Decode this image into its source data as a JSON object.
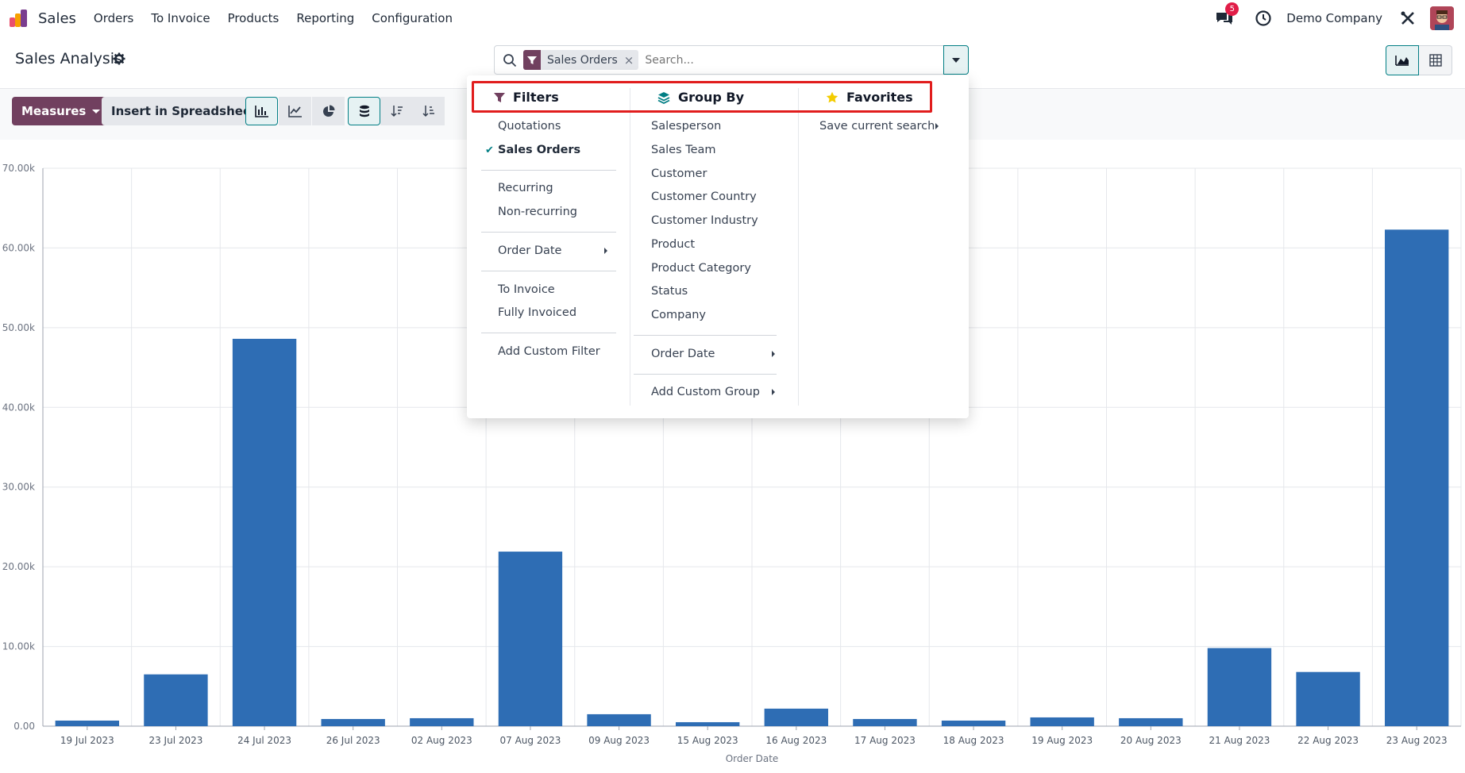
{
  "navbar": {
    "app_name": "Sales",
    "menu": [
      "Orders",
      "To Invoice",
      "Products",
      "Reporting",
      "Configuration"
    ],
    "chat_badge": "5",
    "company": "Demo Company"
  },
  "control_panel": {
    "title": "Sales Analysis",
    "facet_label": "Sales Orders",
    "facet_remove": "×",
    "search_placeholder": "Search..."
  },
  "toolbar": {
    "measures_label": "Measures",
    "spreadsheet_label": "Insert in Spreadsheet"
  },
  "dropdown": {
    "filters": {
      "header": "Filters",
      "items": [
        "Quotations",
        "Sales Orders",
        "Recurring",
        "Non-recurring",
        "Order Date",
        "To Invoice",
        "Fully Invoiced",
        "Add Custom Filter"
      ],
      "checked": "Sales Orders"
    },
    "groupby": {
      "header": "Group By",
      "items": [
        "Salesperson",
        "Sales Team",
        "Customer",
        "Customer Country",
        "Customer Industry",
        "Product",
        "Product Category",
        "Status",
        "Company",
        "Order Date",
        "Add Custom Group"
      ]
    },
    "favorites": {
      "header": "Favorites",
      "items": [
        "Save current search"
      ]
    }
  },
  "colors": {
    "brand": "#71405f",
    "accent": "#017e84",
    "bar": "#2e6db4",
    "highlight": "#e11d1d"
  },
  "chart_data": {
    "type": "bar",
    "xlabel": "Order Date",
    "ylabel": "",
    "ylim": [
      0,
      70000
    ],
    "yticks": [
      0,
      10000,
      20000,
      30000,
      40000,
      50000,
      60000,
      70000
    ],
    "ytick_labels": [
      "0.00",
      "10.00k",
      "20.00k",
      "30.00k",
      "40.00k",
      "50.00k",
      "60.00k",
      "70.00k"
    ],
    "categories": [
      "19 Jul 2023",
      "23 Jul 2023",
      "24 Jul 2023",
      "26 Jul 2023",
      "02 Aug 2023",
      "07 Aug 2023",
      "09 Aug 2023",
      "15 Aug 2023",
      "16 Aug 2023",
      "17 Aug 2023",
      "18 Aug 2023",
      "19 Aug 2023",
      "20 Aug 2023",
      "21 Aug 2023",
      "22 Aug 2023",
      "23 Aug 2023"
    ],
    "values": [
      700,
      6500,
      48600,
      900,
      1000,
      21900,
      1500,
      500,
      2200,
      900,
      700,
      1100,
      1000,
      9800,
      6800,
      62300
    ],
    "grid": true
  }
}
